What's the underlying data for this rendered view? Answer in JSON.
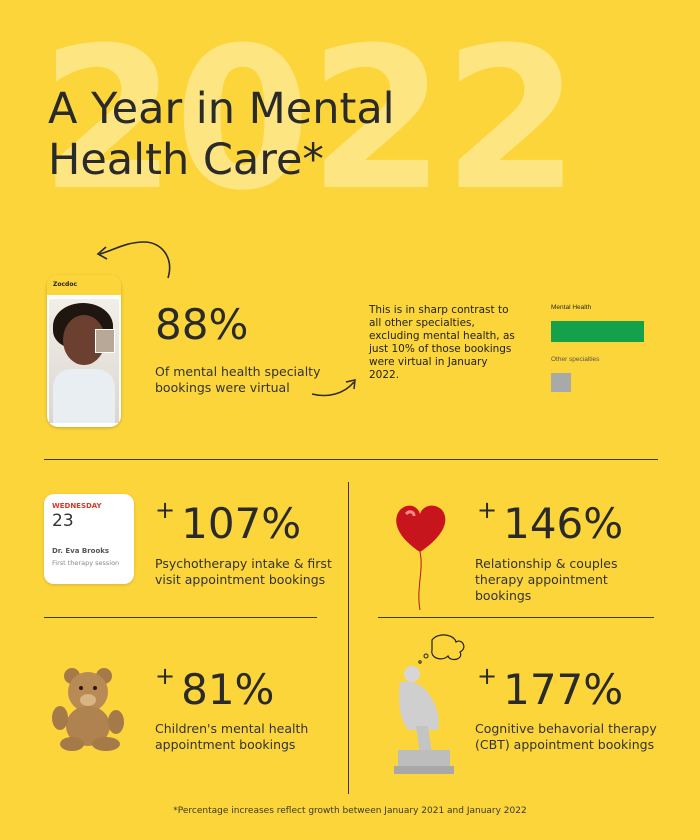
{
  "header": {
    "year": "2022",
    "title": "A Year in Mental Health Care*"
  },
  "phone": {
    "app_name": "Zocdoc"
  },
  "main_stat": {
    "value": "88%",
    "description": "Of mental health specialty bookings were virtual"
  },
  "contrast_text": "This is in sharp contrast to all other specialties, excluding mental health, as just 10% of those bookings were virtual in January 2022.",
  "chart_data": {
    "type": "bar",
    "orientation": "horizontal",
    "categories": [
      "Mental Health",
      "Other specialties"
    ],
    "values": [
      88,
      10
    ],
    "unit": "%",
    "colors": [
      "#15a04a",
      "#a9a9a9"
    ]
  },
  "calendar": {
    "weekday": "WEDNESDAY",
    "day": "23",
    "doctor": "Dr. Eva Brooks",
    "session": "First therapy session"
  },
  "stats": [
    {
      "plus": "+",
      "value": "107%",
      "description": "Psychotherapy intake & first visit appointment bookings",
      "icon": "calendar-icon"
    },
    {
      "plus": "+",
      "value": "146%",
      "description": "Relationship & couples therapy appointment bookings",
      "icon": "heart-balloon-icon"
    },
    {
      "plus": "+",
      "value": "81%",
      "description": "Children's mental health appointment bookings",
      "icon": "teddy-bear-icon"
    },
    {
      "plus": "+",
      "value": "177%",
      "description": "Cognitive behavorial therapy (CBT) appointment bookings",
      "icon": "thinker-statue-icon"
    }
  ],
  "footer": "*Percentage increases reflect growth between January 2021 and January 2022"
}
